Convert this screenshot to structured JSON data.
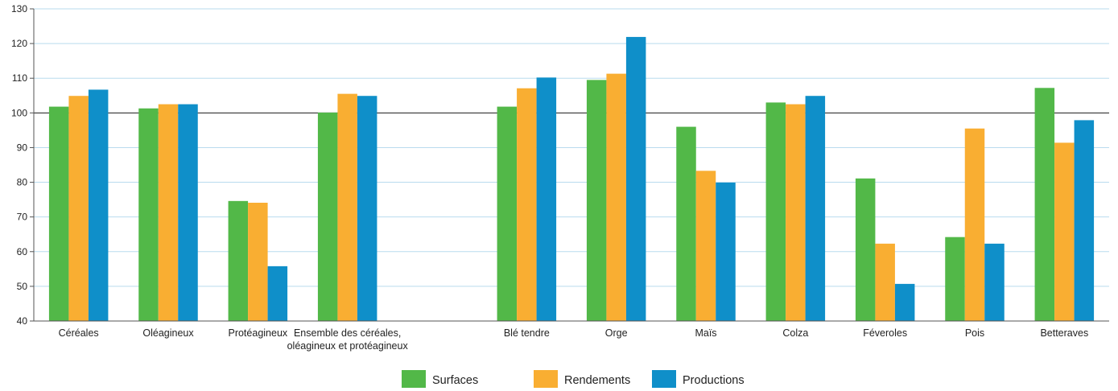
{
  "chart_data": {
    "type": "bar",
    "title": "",
    "xlabel": "",
    "ylabel": "",
    "ylim": [
      40,
      130
    ],
    "yticks": [
      40,
      50,
      60,
      70,
      80,
      90,
      100,
      110,
      120,
      130
    ],
    "reference_line": 100,
    "grid": true,
    "legend_position": "bottom-center",
    "categories": [
      [
        "Céréales"
      ],
      [
        "Oléagineux"
      ],
      [
        "Protéagineux"
      ],
      [
        "Ensemble des céréales,",
        "oléagineux et protéagineux"
      ],
      [
        ""
      ],
      [
        "Blé tendre"
      ],
      [
        "Orge"
      ],
      [
        "Maïs"
      ],
      [
        "Colza"
      ],
      [
        "Féveroles"
      ],
      [
        "Pois"
      ],
      [
        "Betteraves"
      ]
    ],
    "series": [
      {
        "name": "Surfaces",
        "color": "#52b848",
        "values": [
          101.8,
          101.3,
          74.6,
          100.1,
          null,
          101.8,
          109.5,
          96.0,
          103.0,
          81.1,
          64.2,
          107.2
        ]
      },
      {
        "name": "Rendements",
        "color": "#f9ae32",
        "values": [
          104.9,
          102.5,
          74.1,
          105.5,
          null,
          107.1,
          111.3,
          83.3,
          102.5,
          62.3,
          95.5,
          91.4
        ]
      },
      {
        "name": "Productions",
        "color": "#0f8fc9",
        "values": [
          106.7,
          102.5,
          55.8,
          104.9,
          null,
          110.2,
          121.9,
          79.9,
          104.9,
          50.7,
          62.3,
          97.9
        ]
      }
    ]
  }
}
